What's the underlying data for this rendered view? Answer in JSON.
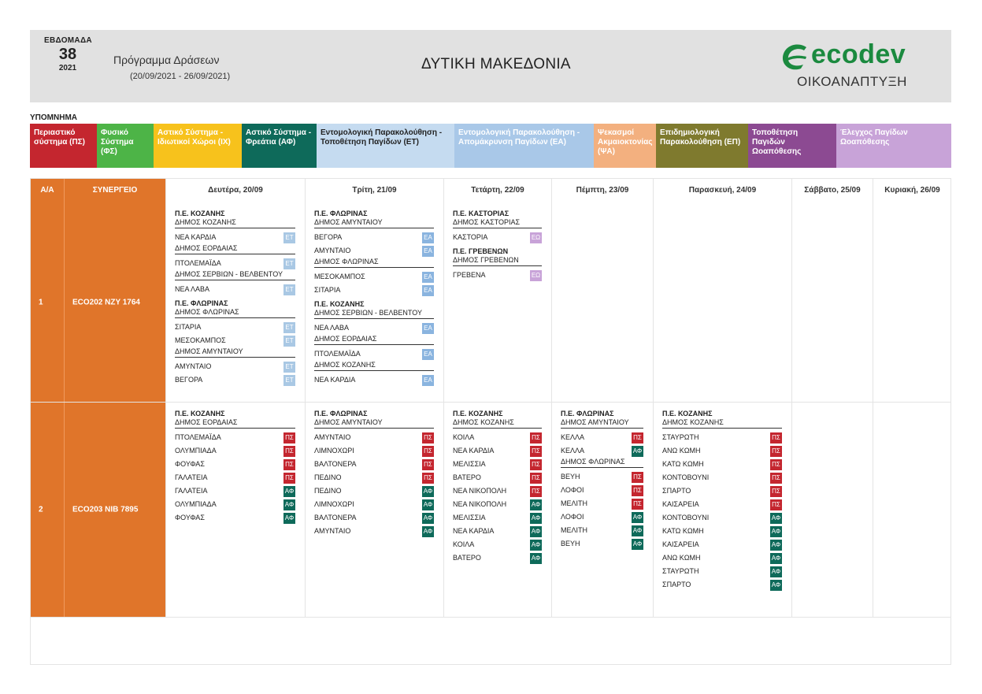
{
  "header": {
    "week_label": "ΕΒΔΟΜΑΔΑ",
    "week_number": "38",
    "year": "2021",
    "program_title": "Πρόγραμμα Δράσεων",
    "program_dates": "(20/09/2021 - 26/09/2021)",
    "region": "ΔΥΤΙΚΗ ΜΑΚΕΔΟΝΙΑ",
    "logo_text": "ecodev",
    "logo_sub": "ΟΙΚΟΑΝΑΠΤΥΞΗ"
  },
  "legend": {
    "title": "ΥΠΟΜΝΗΜΑ",
    "items": [
      {
        "label": "Περιαστικό σύστημα (ΠΣ)",
        "bg": "#c4262f",
        "color": "#ffffff"
      },
      {
        "label": "Φυσικό Σύστημα (ΦΣ)",
        "bg": "#4db447",
        "color": "#ffffff"
      },
      {
        "label": "Αστικό Σύστημα - Ιδιωτικοί Χώροι (ΙΧ)",
        "bg": "#f7c21c",
        "color": "#ffffff"
      },
      {
        "label": "Αστικό Σύστημα - Φρεάτια (ΑΦ)",
        "bg": "#0e6a5a",
        "color": "#ffffff"
      },
      {
        "label": "Εντομολογική Παρακολούθηση - Τοποθέτηση Παγίδων (ΕΤ)",
        "bg": "#c5dbf0",
        "color": "#222222"
      },
      {
        "label": "Εντομολογική Παρακολούθηση - Απομάκρυνση Παγίδων (ΕΑ)",
        "bg": "#a9c8e8",
        "color": "#ffffff"
      },
      {
        "label": "Ψεκασμοί Ακμαιοκτονίας (ΨΑ)",
        "bg": "#f3b07f",
        "color": "#ffffff"
      },
      {
        "label": "Επιδημιολογική Παρακολούθηση (ΕΠ)",
        "bg": "#7f7a2e",
        "color": "#ffffff"
      },
      {
        "label": "Τοποθέτηση Παγιδών Ωοαπόθεσης",
        "bg": "#8c4a92",
        "color": "#ffffff"
      },
      {
        "label": "Έλεγχος Παγίδων Ωοαπόθεσης",
        "bg": "#c8a3d8",
        "color": "#ffffff"
      }
    ]
  },
  "table": {
    "headers": {
      "aa": "Α/Α",
      "vehicle": "ΣΥΝΕΡΓΕΙΟ",
      "days": [
        "Δευτέρα, 20/09",
        "Τρίτη, 21/09",
        "Τετάρτη, 22/09",
        "Πέμπτη, 23/09",
        "Παρασκευή, 24/09",
        "Σάββατο, 25/09",
        "Κυριακή, 26/09"
      ]
    },
    "rows": [
      {
        "aa": "1",
        "vehicle": "ECO202  NZY 1764",
        "days": [
          [
            {
              "t": "pe",
              "text": "Π.Ε. ΚΟΖΑΝΗΣ"
            },
            {
              "t": "dm",
              "text": "ΔΗΜΟΣ ΚΟΖΑΝΗΣ"
            },
            {
              "t": "loc",
              "text": "ΝΕΑ ΚΑΡΔΙΑ",
              "tag": "ΕΤ",
              "cls": "ET"
            },
            {
              "t": "dm",
              "text": "ΔΗΜΟΣ ΕΟΡΔΑΙΑΣ"
            },
            {
              "t": "loc",
              "text": "ΠΤΟΛΕΜΑΪΔΑ",
              "tag": "ΕΤ",
              "cls": "ET"
            },
            {
              "t": "dm",
              "text": "ΔΗΜΟΣ ΣΕΡΒΙΩΝ - ΒΕΛΒΕΝΤΟΥ"
            },
            {
              "t": "loc",
              "text": "ΝΕΑ ΛΑΒΑ",
              "tag": "ΕΤ",
              "cls": "ET"
            },
            {
              "t": "pe",
              "text": "Π.Ε. ΦΛΩΡΙΝΑΣ"
            },
            {
              "t": "dm",
              "text": "ΔΗΜΟΣ ΦΛΩΡΙΝΑΣ"
            },
            {
              "t": "loc",
              "text": "ΣΙΤΑΡΙΑ",
              "tag": "ΕΤ",
              "cls": "ET"
            },
            {
              "t": "loc",
              "text": "ΜΕΣΟΚΑΜΠΟΣ",
              "tag": "ΕΤ",
              "cls": "ET"
            },
            {
              "t": "dm",
              "text": "ΔΗΜΟΣ ΑΜΥΝΤΑΙΟΥ"
            },
            {
              "t": "loc",
              "text": "ΑΜΥΝΤΑΙΟ",
              "tag": "ΕΤ",
              "cls": "ET"
            },
            {
              "t": "loc",
              "text": "ΒΕΓΟΡΑ",
              "tag": "ΕΤ",
              "cls": "ET"
            }
          ],
          [
            {
              "t": "pe",
              "text": "Π.Ε. ΦΛΩΡΙΝΑΣ"
            },
            {
              "t": "dm",
              "text": "ΔΗΜΟΣ ΑΜΥΝΤΑΙΟΥ"
            },
            {
              "t": "loc",
              "text": "ΒΕΓΟΡΑ",
              "tag": "ΕΑ",
              "cls": "EA"
            },
            {
              "t": "loc",
              "text": "ΑΜΥΝΤΑΙΟ",
              "tag": "ΕΑ",
              "cls": "EA"
            },
            {
              "t": "dm",
              "text": "ΔΗΜΟΣ ΦΛΩΡΙΝΑΣ"
            },
            {
              "t": "loc",
              "text": "ΜΕΣΟΚΑΜΠΟΣ",
              "tag": "ΕΑ",
              "cls": "EA"
            },
            {
              "t": "loc",
              "text": "ΣΙΤΑΡΙΑ",
              "tag": "ΕΑ",
              "cls": "EA"
            },
            {
              "t": "pe",
              "text": "Π.Ε. ΚΟΖΑΝΗΣ"
            },
            {
              "t": "dm",
              "text": "ΔΗΜΟΣ ΣΕΡΒΙΩΝ - ΒΕΛΒΕΝΤΟΥ"
            },
            {
              "t": "loc",
              "text": "ΝΕΑ ΛΑΒΑ",
              "tag": "ΕΑ",
              "cls": "EA"
            },
            {
              "t": "dm",
              "text": "ΔΗΜΟΣ ΕΟΡΔΑΙΑΣ"
            },
            {
              "t": "loc",
              "text": "ΠΤΟΛΕΜΑΪΔΑ",
              "tag": "ΕΑ",
              "cls": "EA"
            },
            {
              "t": "dm",
              "text": "ΔΗΜΟΣ ΚΟΖΑΝΗΣ"
            },
            {
              "t": "loc",
              "text": "ΝΕΑ ΚΑΡΔΙΑ",
              "tag": "ΕΑ",
              "cls": "EA"
            }
          ],
          [
            {
              "t": "pe",
              "text": "Π.Ε. ΚΑΣΤΟΡΙΑΣ"
            },
            {
              "t": "dm",
              "text": "ΔΗΜΟΣ ΚΑΣΤΟΡΙΑΣ"
            },
            {
              "t": "loc",
              "text": "ΚΑΣΤΟΡΙΑ",
              "tag": "ΕΩ",
              "cls": "EO"
            },
            {
              "t": "pe",
              "text": "Π.Ε. ΓΡΕΒΕΝΩΝ"
            },
            {
              "t": "dm",
              "text": "ΔΗΜΟΣ ΓΡΕΒΕΝΩΝ"
            },
            {
              "t": "loc",
              "text": "ΓΡΕΒΕΝΑ",
              "tag": "ΕΩ",
              "cls": "EO"
            }
          ],
          [],
          [],
          [],
          []
        ]
      },
      {
        "aa": "2",
        "vehicle": "ECO203  NIB 7895",
        "days": [
          [
            {
              "t": "pe",
              "text": "Π.Ε. ΚΟΖΑΝΗΣ"
            },
            {
              "t": "dm",
              "text": "ΔΗΜΟΣ ΕΟΡΔΑΙΑΣ"
            },
            {
              "t": "loc",
              "text": "ΠΤΟΛΕΜΑΪΔΑ",
              "tag": "ΠΣ",
              "cls": "PS"
            },
            {
              "t": "loc",
              "text": "ΟΛΥΜΠΙΑΔΑ",
              "tag": "ΠΣ",
              "cls": "PS"
            },
            {
              "t": "loc",
              "text": "ΦΟΥΦΑΣ",
              "tag": "ΠΣ",
              "cls": "PS"
            },
            {
              "t": "loc",
              "text": "ΓΑΛΑΤΕΙΑ",
              "tag": "ΠΣ",
              "cls": "PS"
            },
            {
              "t": "loc",
              "text": "ΓΑΛΑΤΕΙΑ",
              "tag": "ΑΦ",
              "cls": "AF"
            },
            {
              "t": "loc",
              "text": "ΟΛΥΜΠΙΑΔΑ",
              "tag": "ΑΦ",
              "cls": "AF"
            },
            {
              "t": "loc",
              "text": "ΦΟΥΦΑΣ",
              "tag": "ΑΦ",
              "cls": "AF"
            }
          ],
          [
            {
              "t": "pe",
              "text": "Π.Ε. ΦΛΩΡΙΝΑΣ"
            },
            {
              "t": "dm",
              "text": "ΔΗΜΟΣ ΑΜΥΝΤΑΙΟΥ"
            },
            {
              "t": "loc",
              "text": "ΑΜΥΝΤΑΙΟ",
              "tag": "ΠΣ",
              "cls": "PS"
            },
            {
              "t": "loc",
              "text": "ΛΙΜΝΟΧΩΡΙ",
              "tag": "ΠΣ",
              "cls": "PS"
            },
            {
              "t": "loc",
              "text": "ΒΑΛΤΟΝΕΡΑ",
              "tag": "ΠΣ",
              "cls": "PS"
            },
            {
              "t": "loc",
              "text": "ΠΕΔΙΝΟ",
              "tag": "ΠΣ",
              "cls": "PS"
            },
            {
              "t": "loc",
              "text": "ΠΕΔΙΝΟ",
              "tag": "ΑΦ",
              "cls": "AF"
            },
            {
              "t": "loc",
              "text": "ΛΙΜΝΟΧΩΡΙ",
              "tag": "ΑΦ",
              "cls": "AF"
            },
            {
              "t": "loc",
              "text": "ΒΑΛΤΟΝΕΡΑ",
              "tag": "ΑΦ",
              "cls": "AF"
            },
            {
              "t": "loc",
              "text": "ΑΜΥΝΤΑΙΟ",
              "tag": "ΑΦ",
              "cls": "AF"
            }
          ],
          [
            {
              "t": "pe",
              "text": "Π.Ε. ΚΟΖΑΝΗΣ"
            },
            {
              "t": "dm",
              "text": "ΔΗΜΟΣ ΚΟΖΑΝΗΣ"
            },
            {
              "t": "loc",
              "text": "ΚΟΙΛΑ",
              "tag": "ΠΣ",
              "cls": "PS"
            },
            {
              "t": "loc",
              "text": "ΝΕΑ ΚΑΡΔΙΑ",
              "tag": "ΠΣ",
              "cls": "PS"
            },
            {
              "t": "loc",
              "text": "ΜΕΛΙΣΣΙΑ",
              "tag": "ΠΣ",
              "cls": "PS"
            },
            {
              "t": "loc",
              "text": "ΒΑΤΕΡΟ",
              "tag": "ΠΣ",
              "cls": "PS"
            },
            {
              "t": "loc",
              "text": "ΝΕΑ ΝΙΚΟΠΟΛΗ",
              "tag": "ΠΣ",
              "cls": "PS"
            },
            {
              "t": "loc",
              "text": "ΝΕΑ ΝΙΚΟΠΟΛΗ",
              "tag": "ΑΦ",
              "cls": "AF"
            },
            {
              "t": "loc",
              "text": "ΜΕΛΙΣΣΙΑ",
              "tag": "ΑΦ",
              "cls": "AF"
            },
            {
              "t": "loc",
              "text": "ΝΕΑ ΚΑΡΔΙΑ",
              "tag": "ΑΦ",
              "cls": "AF"
            },
            {
              "t": "loc",
              "text": "ΚΟΙΛΑ",
              "tag": "ΑΦ",
              "cls": "AF"
            },
            {
              "t": "loc",
              "text": "ΒΑΤΕΡΟ",
              "tag": "ΑΦ",
              "cls": "AF"
            }
          ],
          [
            {
              "t": "pe",
              "text": "Π.Ε. ΦΛΩΡΙΝΑΣ"
            },
            {
              "t": "dm",
              "text": "ΔΗΜΟΣ ΑΜΥΝΤΑΙΟΥ"
            },
            {
              "t": "loc",
              "text": "ΚΕΛΛΑ",
              "tag": "ΠΣ",
              "cls": "PS"
            },
            {
              "t": "loc",
              "text": "ΚΕΛΛΑ",
              "tag": "ΑΦ",
              "cls": "AF"
            },
            {
              "t": "dm",
              "text": "ΔΗΜΟΣ ΦΛΩΡΙΝΑΣ"
            },
            {
              "t": "loc",
              "text": "ΒΕΥΗ",
              "tag": "ΠΣ",
              "cls": "PS"
            },
            {
              "t": "loc",
              "text": "ΛΟΦΟΙ",
              "tag": "ΠΣ",
              "cls": "PS"
            },
            {
              "t": "loc",
              "text": "ΜΕΛΙΤΗ",
              "tag": "ΠΣ",
              "cls": "PS"
            },
            {
              "t": "loc",
              "text": "ΛΟΦΟΙ",
              "tag": "ΑΦ",
              "cls": "AF"
            },
            {
              "t": "loc",
              "text": "ΜΕΛΙΤΗ",
              "tag": "ΑΦ",
              "cls": "AF"
            },
            {
              "t": "loc",
              "text": "ΒΕΥΗ",
              "tag": "ΑΦ",
              "cls": "AF"
            }
          ],
          [
            {
              "t": "pe",
              "text": "Π.Ε. ΚΟΖΑΝΗΣ"
            },
            {
              "t": "dm",
              "text": "ΔΗΜΟΣ ΚΟΖΑΝΗΣ"
            },
            {
              "t": "loc",
              "text": "ΣΤΑΥΡΩΤΗ",
              "tag": "ΠΣ",
              "cls": "PS"
            },
            {
              "t": "loc",
              "text": "ΑΝΩ ΚΩΜΗ",
              "tag": "ΠΣ",
              "cls": "PS"
            },
            {
              "t": "loc",
              "text": "ΚΑΤΩ ΚΩΜΗ",
              "tag": "ΠΣ",
              "cls": "PS"
            },
            {
              "t": "loc",
              "text": "ΚΟΝΤΟΒΟΥΝΙ",
              "tag": "ΠΣ",
              "cls": "PS"
            },
            {
              "t": "loc",
              "text": "ΣΠΑΡΤΟ",
              "tag": "ΠΣ",
              "cls": "PS"
            },
            {
              "t": "loc",
              "text": "ΚΑΙΣΑΡΕΙΑ",
              "tag": "ΠΣ",
              "cls": "PS"
            },
            {
              "t": "loc",
              "text": "ΚΟΝΤΟΒΟΥΝΙ",
              "tag": "ΑΦ",
              "cls": "AF"
            },
            {
              "t": "loc",
              "text": "ΚΑΤΩ ΚΩΜΗ",
              "tag": "ΑΦ",
              "cls": "AF"
            },
            {
              "t": "loc",
              "text": "ΚΑΙΣΑΡΕΙΑ",
              "tag": "ΑΦ",
              "cls": "AF"
            },
            {
              "t": "loc",
              "text": "ΑΝΩ ΚΩΜΗ",
              "tag": "ΑΦ",
              "cls": "AF"
            },
            {
              "t": "loc",
              "text": "ΣΤΑΥΡΩΤΗ",
              "tag": "ΑΦ",
              "cls": "AF"
            },
            {
              "t": "loc",
              "text": "ΣΠΑΡΤΟ",
              "tag": "ΑΦ",
              "cls": "AF"
            }
          ],
          [],
          []
        ]
      }
    ]
  }
}
